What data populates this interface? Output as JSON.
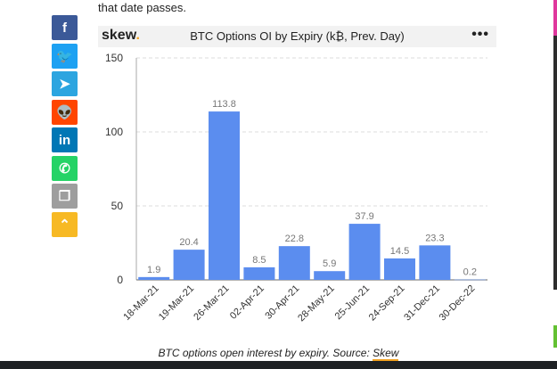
{
  "intro_text": "that date passes.",
  "share_buttons": [
    {
      "name": "facebook-icon",
      "glyph": "f",
      "color": "#3b5998"
    },
    {
      "name": "twitter-icon",
      "glyph": "🐦",
      "color": "#1da1f2"
    },
    {
      "name": "telegram-icon",
      "glyph": "➤",
      "color": "#2ca5e0"
    },
    {
      "name": "reddit-icon",
      "glyph": "👽",
      "color": "#ff4500"
    },
    {
      "name": "linkedin-icon",
      "glyph": "in",
      "color": "#0077b5"
    },
    {
      "name": "whatsapp-icon",
      "glyph": "✆",
      "color": "#25d366"
    },
    {
      "name": "copy-icon",
      "glyph": "❐",
      "color": "#9e9e9e"
    },
    {
      "name": "scroll-up-icon",
      "glyph": "⌃",
      "color": "#f7b924"
    }
  ],
  "widget": {
    "logo": "skew",
    "logo_dot": ".",
    "menu": "•••"
  },
  "caption": {
    "text": "BTC options open interest by expiry. Source: ",
    "link": "Skew"
  },
  "chart_data": {
    "type": "bar",
    "title": "BTC Options OI by Expiry (k₿, Prev. Day)",
    "categories": [
      "18-Mar-21",
      "19-Mar-21",
      "26-Mar-21",
      "02-Apr-21",
      "30-Apr-21",
      "28-May-21",
      "25-Jun-21",
      "24-Sep-21",
      "31-Dec-21",
      "30-Dec-22"
    ],
    "values": [
      1.9,
      20.4,
      113.8,
      8.5,
      22.8,
      5.9,
      37.9,
      14.5,
      23.3,
      0.2
    ],
    "data_labels": [
      "1.9",
      "20.4",
      "113.8",
      "8.5",
      "22.8",
      "5.9",
      "37.9",
      "14.5",
      "23.3",
      "0.2"
    ],
    "ylim": [
      0,
      150
    ],
    "yticks": [
      0,
      50,
      100,
      150
    ],
    "grid": true,
    "bar_color": "#5b8def"
  }
}
